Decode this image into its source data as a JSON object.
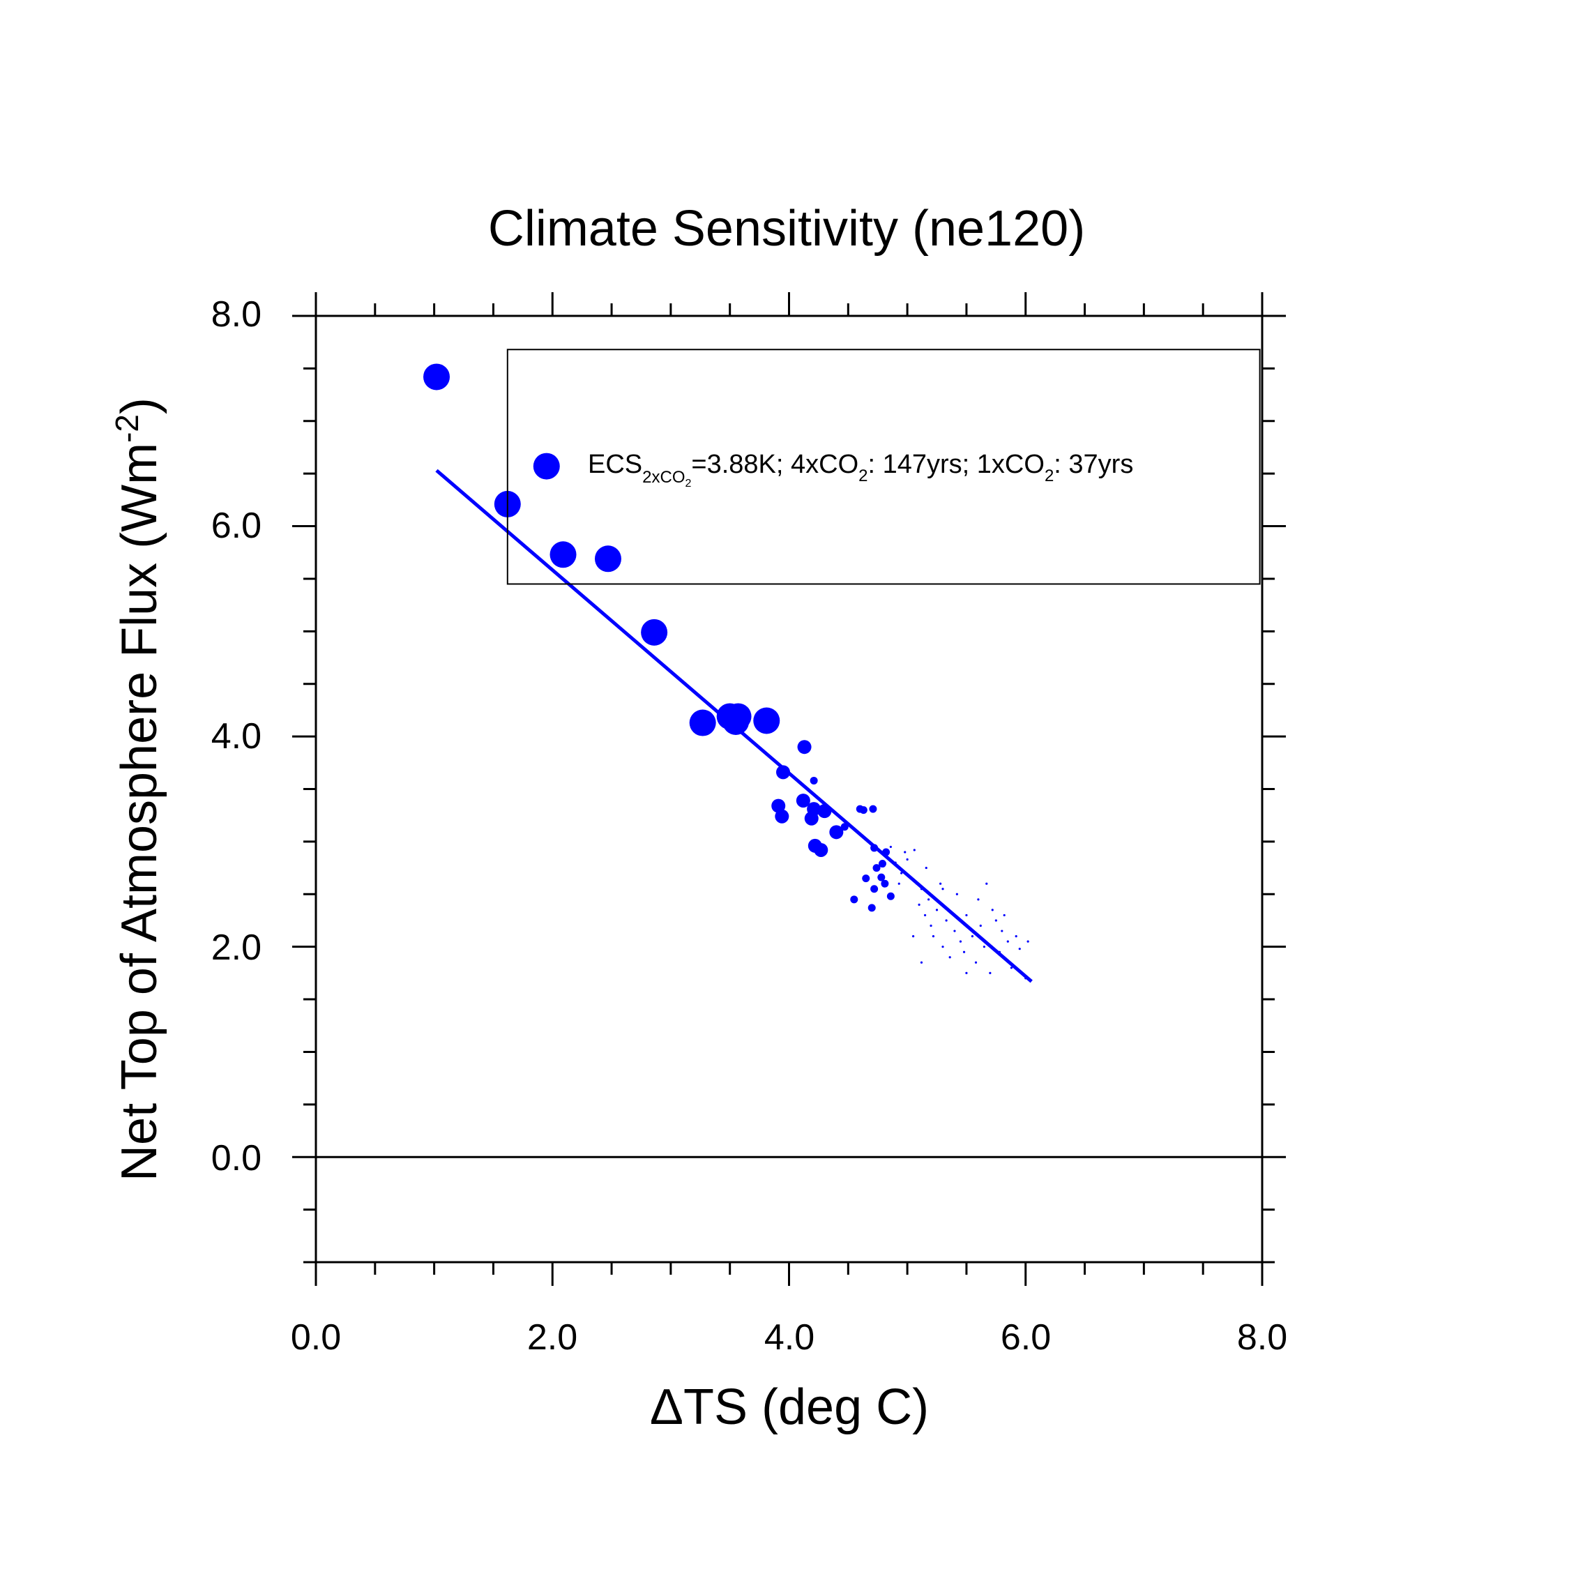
{
  "chart_data": {
    "type": "scatter",
    "title": "Climate Sensitivity (ne120)",
    "xlabel_symbol": "Δ",
    "xlabel_text": "TS (deg C)",
    "ylabel_main": "Net Top of Atmosphere Flux (Wm",
    "ylabel_sup": "-2",
    "ylabel_close": ")",
    "xlim": [
      0,
      8
    ],
    "ylim": [
      -1,
      8
    ],
    "xticks": [
      0,
      2,
      4,
      6,
      8
    ],
    "xtick_labels": [
      "0.0",
      "2.0",
      "4.0",
      "6.0",
      "8.0"
    ],
    "yticks": [
      0,
      2,
      4,
      6,
      8
    ],
    "ytick_labels": [
      "0.0",
      "2.0",
      "4.0",
      "6.0",
      "8.0"
    ],
    "x_minor_step": 0.5,
    "y_minor_step": 0.5,
    "zero_line": 0,
    "color": "#0000ff",
    "legend": {
      "t1": "ECS",
      "t2": "2xCO",
      "t3": "2",
      "t4": "=3.88K; 4xCO",
      "t5": "2",
      "t6": ": 147yrs; 1xCO",
      "t7": "2",
      "t8": ": 37yrs",
      "box_x": [
        1.62,
        7.98
      ],
      "box_y": [
        5.45,
        7.68
      ],
      "marker_x": 1.95,
      "marker_y": 6.57
    },
    "regression_line": {
      "x": [
        1.02,
        6.05
      ],
      "y": [
        6.53,
        1.67
      ]
    },
    "series": [
      {
        "name": "large",
        "size": 3,
        "points": [
          [
            1.02,
            7.42
          ],
          [
            1.62,
            6.21
          ],
          [
            2.09,
            5.73
          ],
          [
            2.47,
            5.69
          ],
          [
            2.86,
            4.99
          ],
          [
            3.27,
            4.13
          ],
          [
            3.5,
            4.19
          ],
          [
            3.57,
            4.19
          ],
          [
            3.55,
            4.14
          ],
          [
            3.81,
            4.15
          ]
        ]
      },
      {
        "name": "medium",
        "size": 2,
        "points": [
          [
            4.13,
            3.9
          ],
          [
            3.95,
            3.66
          ],
          [
            3.91,
            3.34
          ],
          [
            3.94,
            3.24
          ],
          [
            4.12,
            3.39
          ],
          [
            4.21,
            3.31
          ],
          [
            4.3,
            3.29
          ],
          [
            4.19,
            3.22
          ],
          [
            4.22,
            2.96
          ],
          [
            4.27,
            2.92
          ],
          [
            4.4,
            3.09
          ]
        ]
      },
      {
        "name": "small",
        "size": 1,
        "points": [
          [
            4.21,
            3.58
          ],
          [
            4.6,
            3.31
          ],
          [
            4.63,
            3.3
          ],
          [
            4.47,
            3.14
          ],
          [
            4.55,
            2.45
          ],
          [
            4.7,
            2.37
          ],
          [
            4.72,
            2.55
          ],
          [
            4.74,
            2.75
          ],
          [
            4.72,
            2.94
          ],
          [
            4.78,
            2.66
          ],
          [
            4.82,
            2.9
          ],
          [
            4.65,
            2.65
          ],
          [
            4.86,
            2.48
          ],
          [
            4.81,
            2.6
          ],
          [
            4.71,
            3.31
          ],
          [
            4.79,
            2.79
          ]
        ]
      },
      {
        "name": "tiny",
        "size": 0,
        "points": [
          [
            4.86,
            2.95
          ],
          [
            4.9,
            2.8
          ],
          [
            4.95,
            2.7
          ],
          [
            5.0,
            2.83
          ],
          [
            5.03,
            2.65
          ],
          [
            5.06,
            2.92
          ],
          [
            5.08,
            2.6
          ],
          [
            5.1,
            2.4
          ],
          [
            5.12,
            2.55
          ],
          [
            5.15,
            2.3
          ],
          [
            5.18,
            2.45
          ],
          [
            5.2,
            2.2
          ],
          [
            5.22,
            2.1
          ],
          [
            5.25,
            2.35
          ],
          [
            5.28,
            2.6
          ],
          [
            5.3,
            2.0
          ],
          [
            5.33,
            2.25
          ],
          [
            5.36,
            1.9
          ],
          [
            5.4,
            2.15
          ],
          [
            5.42,
            2.5
          ],
          [
            5.45,
            2.05
          ],
          [
            5.48,
            1.95
          ],
          [
            5.5,
            2.3
          ],
          [
            5.55,
            2.1
          ],
          [
            5.58,
            1.85
          ],
          [
            5.62,
            2.2
          ],
          [
            5.65,
            2.0
          ],
          [
            5.7,
            1.75
          ],
          [
            5.72,
            2.35
          ],
          [
            5.75,
            2.25
          ],
          [
            5.78,
            1.95
          ],
          [
            5.8,
            2.15
          ],
          [
            5.85,
            2.05
          ],
          [
            5.88,
            1.8
          ],
          [
            5.92,
            2.1
          ],
          [
            5.95,
            1.98
          ],
          [
            6.0,
            1.7
          ],
          [
            6.02,
            2.05
          ],
          [
            5.6,
            2.45
          ],
          [
            5.3,
            2.55
          ],
          [
            5.05,
            2.1
          ],
          [
            4.98,
            2.9
          ],
          [
            5.12,
            1.85
          ],
          [
            5.5,
            1.75
          ],
          [
            5.82,
            2.3
          ],
          [
            4.93,
            2.6
          ],
          [
            5.16,
            2.75
          ],
          [
            5.67,
            2.6
          ]
        ]
      }
    ]
  }
}
